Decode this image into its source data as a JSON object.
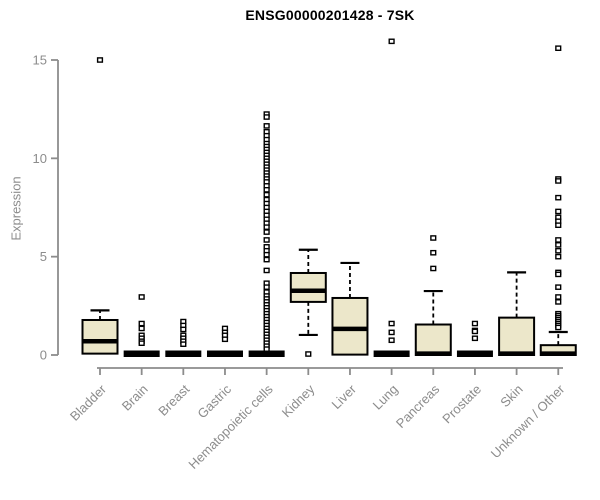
{
  "chart_data": {
    "type": "boxplot",
    "title": "ENSG00000201428 - 7SK",
    "ylabel": "Expression",
    "xlabel": "",
    "ylim": [
      0,
      16.3
    ],
    "yticks": [
      0,
      5,
      10,
      15
    ],
    "grid": false,
    "legend": "none",
    "categories": [
      "Bladder",
      "Brain",
      "Breast",
      "Gastric",
      "Hematopoietic cells",
      "Kidney",
      "Liver",
      "Lung",
      "Pancreas",
      "Prostate",
      "Skin",
      "Unknown / Other"
    ],
    "series": [
      {
        "name": "Bladder",
        "q1": 0.07,
        "median": 0.7,
        "q3": 1.78,
        "whisker_low": 0.07,
        "whisker_high": 2.27,
        "outliers": [
          15.0
        ]
      },
      {
        "name": "Brain",
        "q1": 0,
        "median": 0,
        "q3": 0,
        "whisker_low": 0,
        "whisker_high": 0,
        "outliers": [
          2.95,
          1.6,
          1.35,
          1.0,
          0.85,
          0.7,
          0.6
        ]
      },
      {
        "name": "Breast",
        "q1": 0,
        "median": 0,
        "q3": 0,
        "whisker_low": 0,
        "whisker_high": 0,
        "outliers": [
          1.7,
          1.5,
          1.3,
          1.0,
          0.85,
          0.7,
          0.55
        ]
      },
      {
        "name": "Gastric",
        "q1": 0,
        "median": 0,
        "q3": 0,
        "whisker_low": 0,
        "whisker_high": 0,
        "outliers": [
          1.35,
          1.15,
          1.0,
          0.8
        ]
      },
      {
        "name": "Hematopoietic cells",
        "q1": 0,
        "median": 0,
        "q3": 0,
        "whisker_low": 0,
        "whisker_high": 0,
        "outliers": [
          12.25,
          12.1,
          11.65,
          11.35,
          11.15,
          10.95,
          10.75,
          10.6,
          10.45,
          10.3,
          10.15,
          10.0,
          9.85,
          9.7,
          9.55,
          9.4,
          9.25,
          9.1,
          8.95,
          8.8,
          8.6,
          8.4,
          8.15,
          7.9,
          7.7,
          7.5,
          7.3,
          7.1,
          6.9,
          6.7,
          6.5,
          6.25,
          5.85,
          5.5,
          5.3,
          5.1,
          4.85,
          4.3,
          3.65,
          3.45,
          3.2,
          3.0,
          2.85,
          2.7,
          2.55,
          2.4,
          2.25,
          2.1,
          1.95,
          1.8,
          1.65,
          1.5,
          1.35,
          1.2,
          1.05,
          0.9,
          0.75,
          0.6,
          0.45,
          0.3
        ]
      },
      {
        "name": "Kidney",
        "q1": 2.7,
        "median": 3.27,
        "q3": 4.17,
        "whisker_low": 1.02,
        "whisker_high": 5.35,
        "outliers": [
          0.05
        ]
      },
      {
        "name": "Liver",
        "q1": 0.02,
        "median": 1.33,
        "q3": 2.9,
        "whisker_low": 0.02,
        "whisker_high": 4.68,
        "outliers": []
      },
      {
        "name": "Lung",
        "q1": 0,
        "median": 0,
        "q3": 0,
        "whisker_low": 0,
        "whisker_high": 0,
        "outliers": [
          15.95,
          1.6,
          1.15,
          0.75
        ]
      },
      {
        "name": "Pancreas",
        "q1": 0.0,
        "median": 0.07,
        "q3": 1.55,
        "whisker_low": 0.0,
        "whisker_high": 3.25,
        "outliers": [
          5.95,
          5.2,
          4.4
        ]
      },
      {
        "name": "Prostate",
        "q1": 0,
        "median": 0,
        "q3": 0,
        "whisker_low": 0,
        "whisker_high": 0,
        "outliers": [
          1.6,
          1.25,
          1.2,
          0.85
        ]
      },
      {
        "name": "Skin",
        "q1": 0.0,
        "median": 0.07,
        "q3": 1.9,
        "whisker_low": 0.0,
        "whisker_high": 4.2,
        "outliers": []
      },
      {
        "name": "Unknown / Other",
        "q1": 0.0,
        "median": 0.07,
        "q3": 0.5,
        "whisker_low": 0.0,
        "whisker_high": 1.17,
        "outliers": [
          15.6,
          8.95,
          8.85,
          8.0,
          7.3,
          7.0,
          6.8,
          6.6,
          5.85,
          5.6,
          5.3,
          5.0,
          4.2,
          4.1,
          3.45,
          2.95,
          2.7,
          2.1,
          2.0,
          1.9,
          1.8,
          1.7,
          1.6,
          1.5,
          1.4
        ]
      }
    ],
    "colors": {
      "box_fill": "#ece7ca",
      "box_stroke": "#000000",
      "median": "#000000",
      "outlier_stroke": "#000000",
      "outlier_fill": "#ffffff",
      "axis": "#8c8c8c",
      "tick_text": "#8c8c8c",
      "title_text": "#000000",
      "background": "#ffffff"
    }
  }
}
